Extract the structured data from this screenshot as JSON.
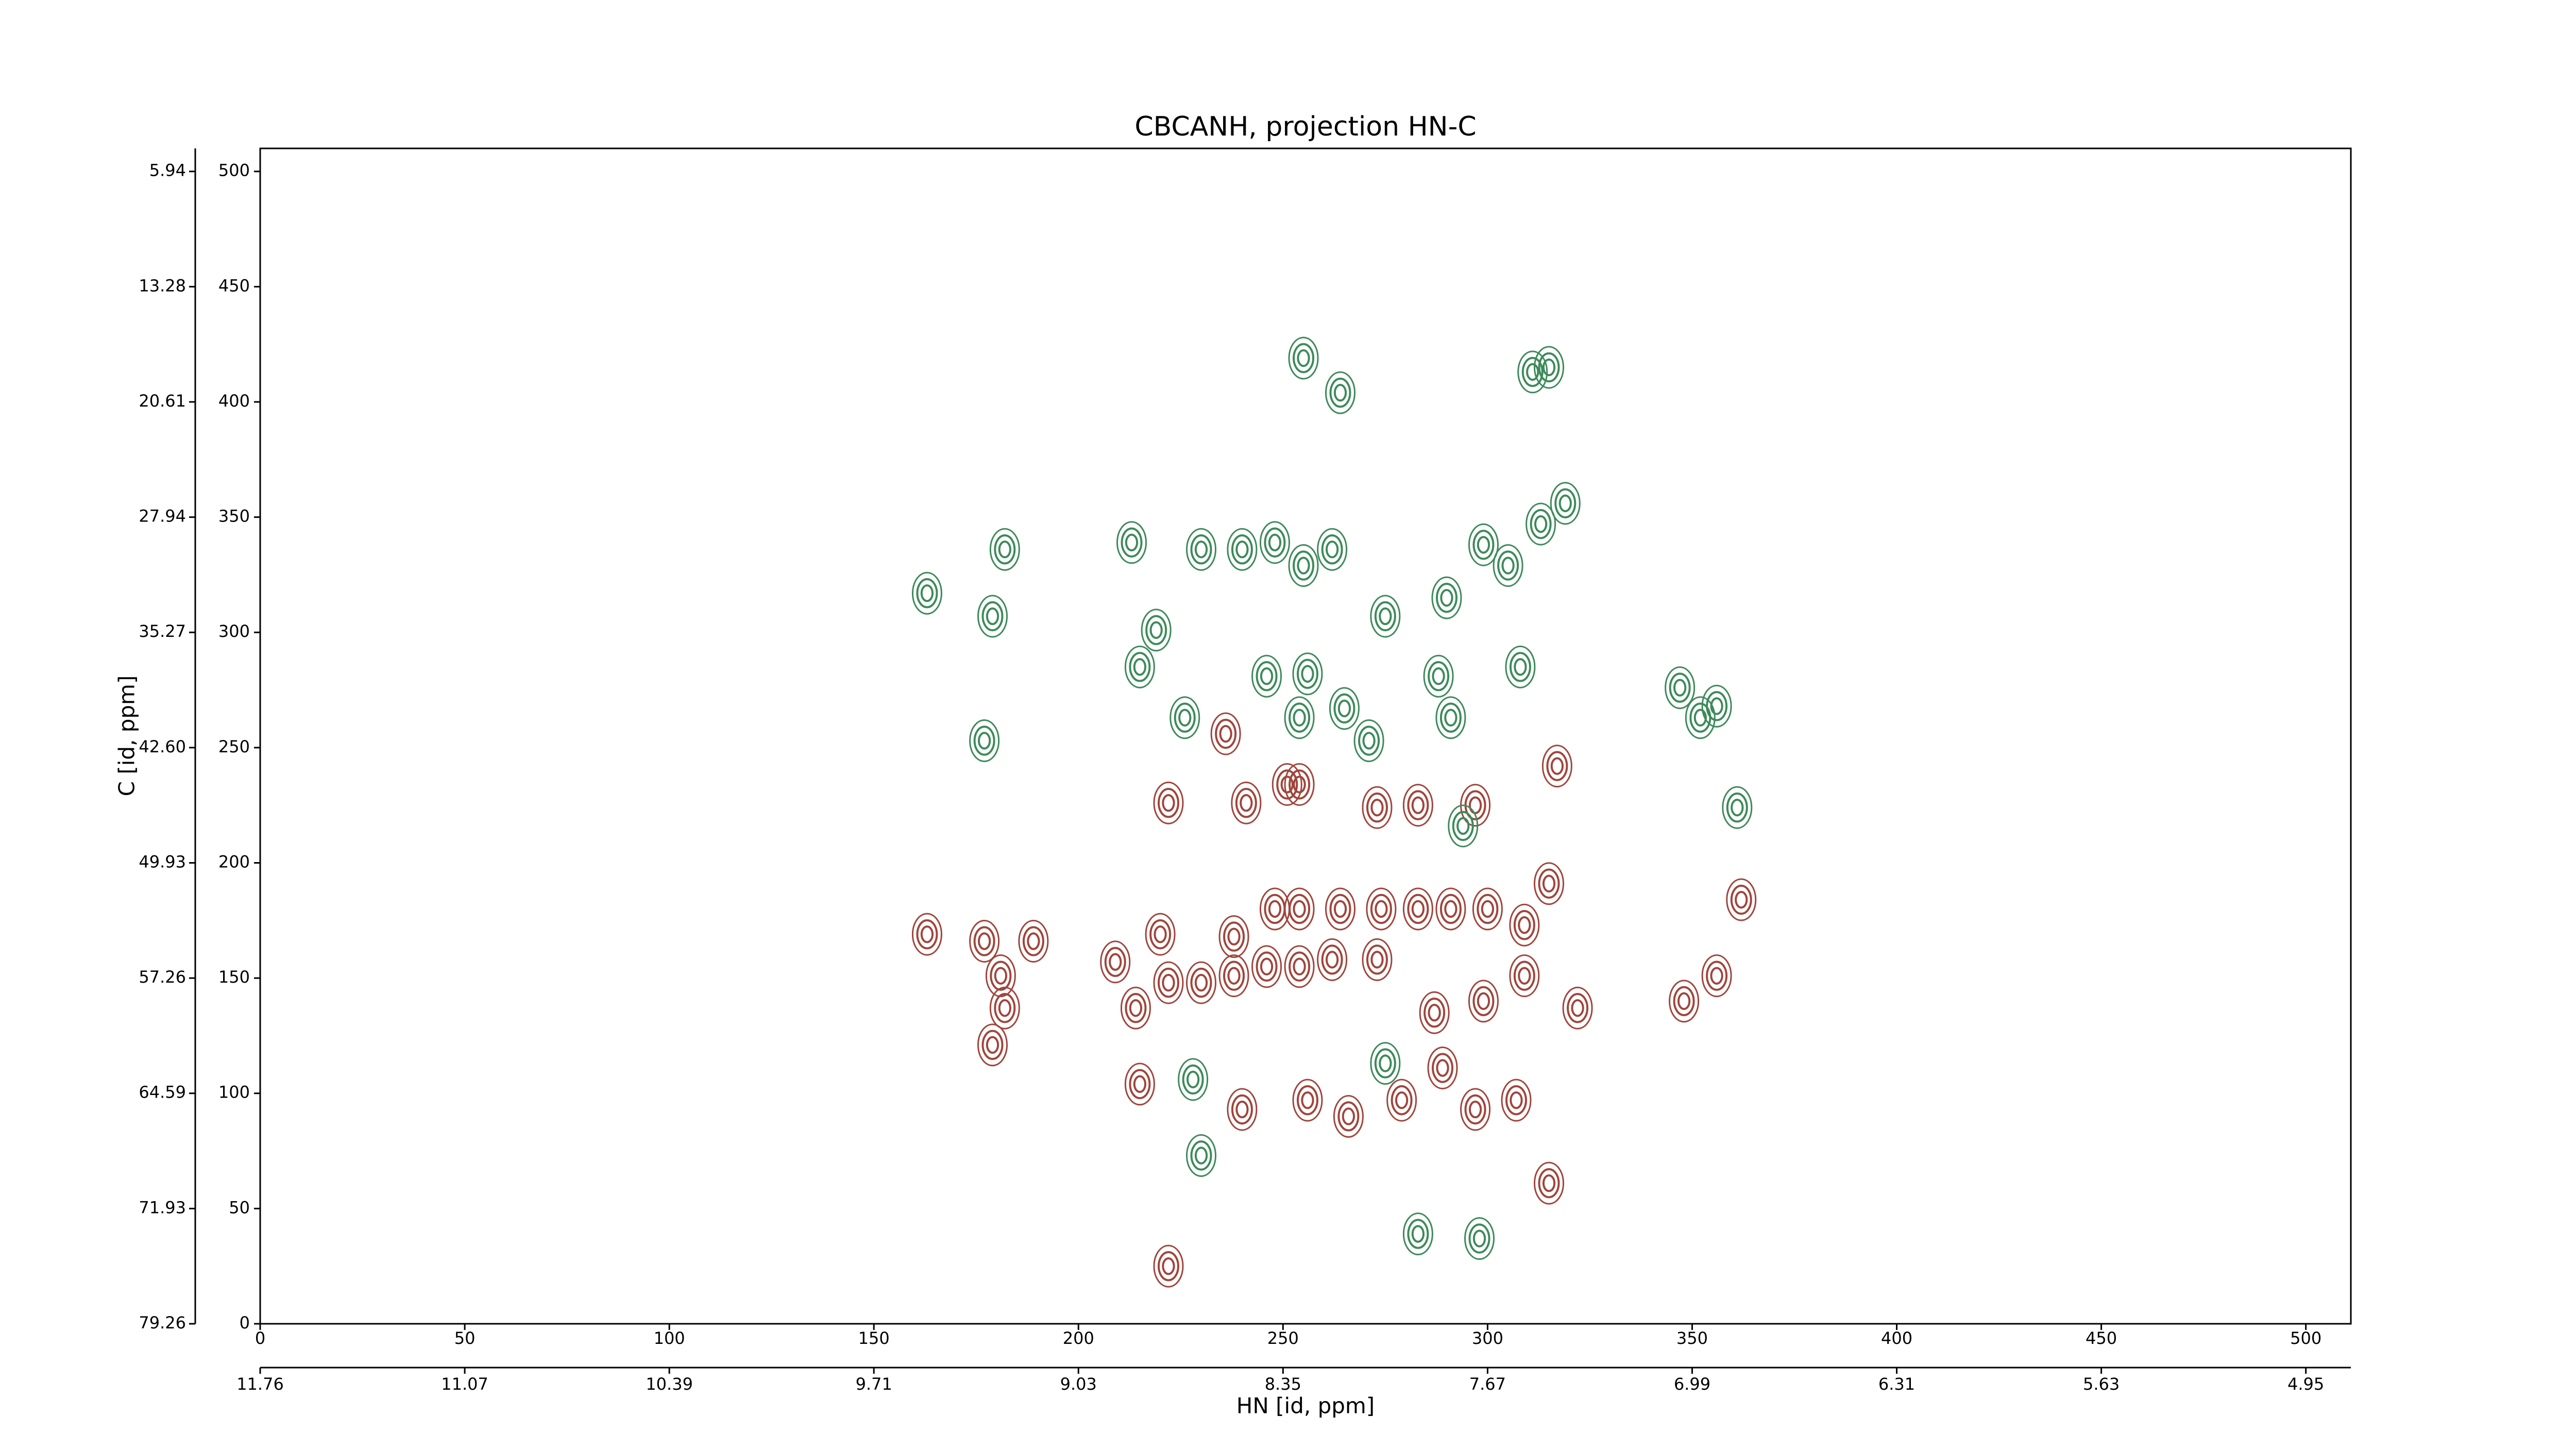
{
  "chart_data": {
    "type": "contour",
    "title": "CBCANH, projection HN-C",
    "x_label": "HN [id, ppm]",
    "y_label": "C [id, ppm]",
    "xlim": [
      0,
      511
    ],
    "ylim": [
      0,
      510
    ],
    "xticks": [
      0,
      50,
      100,
      150,
      200,
      250,
      300,
      350,
      400,
      450,
      500
    ],
    "yticks": [
      0,
      50,
      100,
      150,
      200,
      250,
      300,
      350,
      400,
      450,
      500
    ],
    "x2ticks": [
      {
        "value": 0,
        "label": "11.76"
      },
      {
        "value": 50,
        "label": "11.07"
      },
      {
        "value": 100,
        "label": "10.39"
      },
      {
        "value": 150,
        "label": "9.71"
      },
      {
        "value": 200,
        "label": "9.03"
      },
      {
        "value": 250,
        "label": "8.35"
      },
      {
        "value": 300,
        "label": "7.67"
      },
      {
        "value": 350,
        "label": "6.99"
      },
      {
        "value": 400,
        "label": "6.31"
      },
      {
        "value": 450,
        "label": "5.63"
      },
      {
        "value": 500,
        "label": "4.95"
      }
    ],
    "y2ticks": [
      {
        "value": 0,
        "label": "79.26"
      },
      {
        "value": 50,
        "label": "71.93"
      },
      {
        "value": 100,
        "label": "64.59"
      },
      {
        "value": 150,
        "label": "57.26"
      },
      {
        "value": 200,
        "label": "49.93"
      },
      {
        "value": 250,
        "label": "42.60"
      },
      {
        "value": 300,
        "label": "35.27"
      },
      {
        "value": 350,
        "label": "27.94"
      },
      {
        "value": 400,
        "label": "20.61"
      },
      {
        "value": 450,
        "label": "13.28"
      },
      {
        "value": 500,
        "label": "5.94"
      }
    ],
    "series": [
      {
        "color": "#a0453c",
        "x": [
          222,
          241,
          251,
          273,
          283,
          297,
          163,
          177,
          181,
          182,
          179,
          209,
          220,
          238,
          248,
          254,
          264,
          274,
          283,
          291,
          300,
          309,
          315,
          214,
          222,
          230,
          238,
          246,
          254,
          262,
          273,
          287,
          299,
          309,
          322,
          348,
          356,
          362,
          215,
          240,
          256,
          266,
          279,
          297,
          307,
          315,
          222,
          289,
          254,
          236,
          317,
          189
        ],
        "y": [
          226,
          226,
          234,
          224,
          225,
          225,
          169,
          166,
          151,
          137,
          121,
          157,
          169,
          168,
          180,
          180,
          180,
          180,
          180,
          180,
          180,
          173,
          191,
          137,
          148,
          148,
          151,
          155,
          155,
          158,
          158,
          135,
          140,
          151,
          137,
          140,
          151,
          184,
          104,
          93,
          97,
          90,
          97,
          93,
          97,
          61,
          25,
          111,
          234,
          256,
          242,
          166
        ]
      },
      {
        "color": "#3d8a5a",
        "x": [
          255,
          264,
          311,
          315,
          182,
          163,
          179,
          213,
          219,
          230,
          240,
          248,
          255,
          262,
          275,
          290,
          299,
          305,
          313,
          319,
          215,
          226,
          246,
          256,
          265,
          254,
          271,
          288,
          291,
          294,
          308,
          347,
          352,
          356,
          361,
          177,
          230,
          283,
          298,
          275,
          228
        ],
        "y": [
          419,
          404,
          413,
          415,
          336,
          317,
          307,
          339,
          301,
          336,
          336,
          339,
          329,
          336,
          307,
          315,
          338,
          329,
          347,
          356,
          285,
          263,
          281,
          282,
          267,
          263,
          253,
          281,
          263,
          216,
          285,
          276,
          263,
          268,
          224,
          253,
          73,
          39,
          37,
          113,
          106
        ]
      }
    ]
  }
}
